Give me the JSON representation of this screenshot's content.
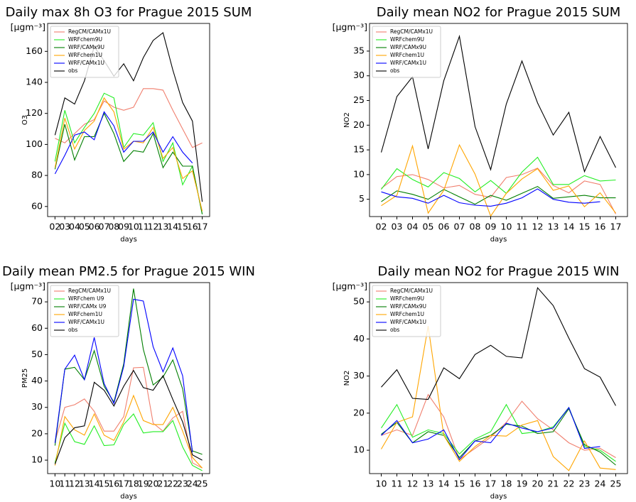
{
  "chart_data": [
    {
      "type": "line",
      "title": "Daily max 8h O3 for Prague 2015 SUM",
      "units": "[μgm⁻³]",
      "y_label": "O3",
      "x_label": "days",
      "legend": "upper left",
      "categories": [
        "02",
        "03",
        "04",
        "05",
        "06",
        "07",
        "08",
        "09",
        "10",
        "11",
        "12",
        "13",
        "14",
        "15",
        "16",
        "17"
      ],
      "ylim": [
        53.5,
        178
      ],
      "yticks": [
        60,
        80,
        100,
        120,
        140,
        160
      ],
      "series": [
        {
          "name": "RegCM/CAMx1U",
          "color": "#f07f6e",
          "values": [
            104,
            101,
            107,
            113,
            116,
            128,
            124,
            122,
            124,
            136,
            136,
            135,
            122,
            110,
            98,
            101
          ]
        },
        {
          "name": "WRFchem9U",
          "color": "#22ee22",
          "values": [
            89,
            122,
            101,
            111,
            120,
            133,
            130,
            98,
            107,
            106,
            114,
            89,
            101,
            74,
            86,
            55
          ]
        },
        {
          "name": "WRF/CAMx9U",
          "color": "#007f00",
          "values": [
            84,
            113,
            90,
            105,
            105,
            120,
            107,
            89,
            96,
            95,
            107,
            85,
            95,
            86,
            86,
            55
          ]
        },
        {
          "name": "WRFchem1U",
          "color": "#ffa500",
          "values": [
            85,
            117,
            97,
            109,
            115,
            130,
            121,
            97,
            102,
            101,
            111,
            91,
            98,
            78,
            83,
            57
          ]
        },
        {
          "name": "WRF/CAMx1U",
          "color": "#0000ff",
          "values": [
            81,
            93,
            106,
            108,
            103,
            121,
            112,
            95,
            102,
            102,
            108,
            95,
            105,
            95,
            88,
            null
          ]
        },
        {
          "name": "obs",
          "color": "#000000",
          "values": [
            106,
            130,
            126,
            141,
            163,
            154,
            144,
            152,
            141,
            156,
            167,
            172,
            148,
            127,
            115,
            63
          ]
        }
      ]
    },
    {
      "type": "line",
      "title": "Daily mean NO2 for Prague 2015 SUM",
      "units": "[μgm⁻³]",
      "y_label": "NO2",
      "x_label": "days",
      "legend": "upper left",
      "categories": [
        "02",
        "03",
        "04",
        "05",
        "06",
        "07",
        "08",
        "09",
        "10",
        "11",
        "12",
        "13",
        "14",
        "15",
        "16",
        "17"
      ],
      "ylim": [
        1.5,
        40.6
      ],
      "yticks": [
        5,
        10,
        15,
        20,
        25,
        30,
        35
      ],
      "series": [
        {
          "name": "RegCM/CAMx1U",
          "color": "#f07f6e",
          "values": [
            7.2,
            9.6,
            10,
            9,
            7.3,
            7.8,
            6,
            5.4,
            9.4,
            10,
            11.3,
            7.8,
            6.3,
            8.7,
            8,
            2
          ]
        },
        {
          "name": "WRFchem9U",
          "color": "#22ee22",
          "values": [
            7,
            11.2,
            9,
            7.5,
            10.4,
            9.2,
            6.5,
            8.8,
            6.2,
            10.5,
            13.5,
            8,
            8,
            9.8,
            8.7,
            8.9
          ]
        },
        {
          "name": "WRF/CAMx9U",
          "color": "#007f00",
          "values": [
            4.5,
            6.7,
            6,
            5,
            7,
            5.5,
            4,
            5.8,
            4.8,
            6.2,
            7.6,
            5.2,
            5.5,
            5.8,
            5.3,
            5.3
          ]
        },
        {
          "name": "WRFchem1U",
          "color": "#ffa500",
          "values": [
            3.7,
            5.8,
            15.8,
            2.2,
            6.8,
            16,
            10.1,
            1.6,
            6.2,
            9.1,
            11.2,
            6.8,
            7.7,
            3.5,
            6.3,
            2.2
          ]
        },
        {
          "name": "WRF/CAMx1U",
          "color": "#0000ff",
          "values": [
            6.5,
            5.5,
            5.2,
            4.2,
            5.8,
            4.3,
            3.8,
            3.6,
            4.2,
            5.3,
            7.1,
            5,
            4.4,
            4.2,
            4.5,
            null
          ]
        },
        {
          "name": "obs",
          "color": "#000000",
          "values": [
            14.5,
            25.8,
            29.8,
            15.2,
            29,
            38,
            19.7,
            11,
            24.3,
            33,
            24.5,
            18,
            22.6,
            10.6,
            17.7,
            11.4
          ]
        }
      ]
    },
    {
      "type": "line",
      "title": "Daily mean PM2.5 for Prague 2015 WIN",
      "units": "[μgm⁻³]",
      "y_label": "PM25",
      "x_label": "days",
      "legend": "upper left",
      "categories": [
        "10",
        "11",
        "12",
        "13",
        "14",
        "15",
        "16",
        "17",
        "18",
        "19",
        "20",
        "21",
        "22",
        "23",
        "24",
        "25"
      ],
      "ylim": [
        4.9,
        77.3
      ],
      "yticks": [
        10,
        20,
        30,
        40,
        50,
        60,
        70
      ],
      "series": [
        {
          "name": "RegCM/CAMx1U",
          "color": "#f07f6e",
          "values": [
            17,
            30,
            31,
            33.2,
            28.5,
            21,
            21,
            26.5,
            45,
            45.2,
            24,
            21,
            26,
            28.5,
            9,
            7
          ]
        },
        {
          "name": "WRFchem U9",
          "color": "#22ee22",
          "values": [
            9,
            24,
            17,
            16,
            23,
            15.5,
            15.8,
            23.5,
            27.5,
            20.3,
            20.8,
            20.8,
            25,
            15,
            8,
            6
          ]
        },
        {
          "name": "WRF/CAMx U9",
          "color": "#007f00",
          "values": [
            15.5,
            44.5,
            45.2,
            40.5,
            51.5,
            38,
            32,
            46.5,
            75,
            52,
            38.5,
            41.5,
            48,
            37,
            13.5,
            12.2
          ]
        },
        {
          "name": "WRFchem1U",
          "color": "#ffa500",
          "values": [
            8,
            26.5,
            21.5,
            19.5,
            27.5,
            19.5,
            17.5,
            24.5,
            34.5,
            25,
            23.5,
            23.5,
            30,
            21,
            11,
            7
          ]
        },
        {
          "name": "WRF/CAMx1U",
          "color": "#0000ff",
          "values": [
            16.5,
            44.5,
            49.8,
            40.5,
            56.5,
            39,
            31.5,
            45.5,
            71,
            70.3,
            53,
            43.5,
            52.5,
            42,
            13,
            null
          ]
        },
        {
          "name": "obs",
          "color": "#000000",
          "values": [
            8.5,
            18.5,
            22.3,
            23,
            39.5,
            36.5,
            30.5,
            38,
            44,
            37.5,
            36.5,
            42,
            33,
            24.5,
            12,
            10
          ]
        }
      ]
    },
    {
      "type": "line",
      "title": "Daily mean NO2 for Prague 2015 WIN",
      "units": "[μgm⁻³]",
      "y_label": "NO2",
      "x_label": "days",
      "legend": "upper left",
      "categories": [
        "10",
        "11",
        "12",
        "13",
        "14",
        "15",
        "16",
        "17",
        "18",
        "19",
        "20",
        "21",
        "22",
        "23",
        "24",
        "25"
      ],
      "ylim": [
        3.7,
        55.2
      ],
      "yticks": [
        10,
        20,
        30,
        40,
        50
      ],
      "series": [
        {
          "name": "RegCM/CAMx1U",
          "color": "#f07f6e",
          "values": [
            14,
            15.5,
            14,
            25,
            19,
            7.5,
            10.5,
            13.5,
            17.5,
            23.2,
            18.5,
            15.5,
            12,
            10,
            10.5,
            8
          ]
        },
        {
          "name": "WRFchem9U",
          "color": "#22ee22",
          "values": [
            16,
            22.3,
            13.5,
            15.5,
            14.5,
            9,
            13,
            15,
            22.3,
            14.5,
            15,
            16.3,
            21.5,
            11,
            10,
            7
          ]
        },
        {
          "name": "WRF/CAMx9U",
          "color": "#007f00",
          "values": [
            14.3,
            17.5,
            12,
            15,
            14,
            8,
            12.5,
            14,
            17,
            16.5,
            14.5,
            15,
            21.2,
            11.5,
            9.5,
            6
          ]
        },
        {
          "name": "WRFchem1U",
          "color": "#ffa500",
          "values": [
            10.3,
            17.5,
            19,
            43.5,
            14,
            7,
            11,
            14,
            13.8,
            16.8,
            18,
            8.3,
            4.5,
            12.5,
            5.2,
            4.8
          ]
        },
        {
          "name": "WRF/CAMx1U",
          "color": "#0000ff",
          "values": [
            14,
            18,
            12,
            13,
            15.5,
            7.5,
            12.5,
            12,
            17.3,
            16,
            15,
            16,
            21.5,
            10.5,
            11,
            null
          ]
        },
        {
          "name": "obs",
          "color": "#000000",
          "values": [
            27,
            31.7,
            24,
            23.7,
            32.2,
            29.3,
            35.8,
            38.3,
            35.3,
            34.9,
            53.8,
            49,
            40.2,
            32,
            29.7,
            22
          ]
        }
      ]
    }
  ]
}
